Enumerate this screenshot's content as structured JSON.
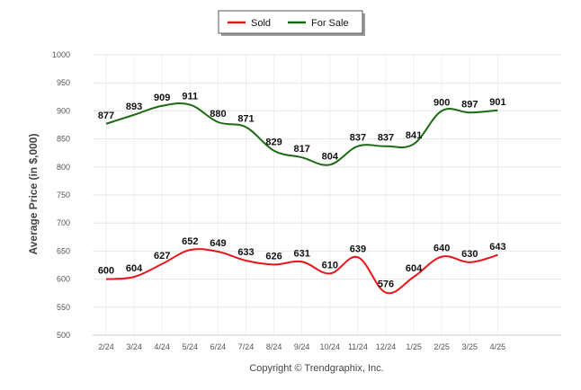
{
  "chart_data": {
    "type": "line",
    "ylabel": "Average Price (in $,000)",
    "ylim": [
      500,
      1000
    ],
    "yticks": [
      500,
      550,
      600,
      650,
      700,
      750,
      800,
      850,
      900,
      950,
      1000
    ],
    "grid": true,
    "legend_position": "top-center",
    "categories": [
      "2/24",
      "3/24",
      "4/24",
      "5/24",
      "6/24",
      "7/24",
      "8/24",
      "9/24",
      "10/24",
      "11/24",
      "12/24",
      "1/25",
      "2/25",
      "3/25",
      "4/25"
    ],
    "series": [
      {
        "name": "Sold",
        "color": "#e8151b",
        "values": [
          600,
          604,
          627,
          652,
          649,
          633,
          626,
          631,
          610,
          639,
          576,
          604,
          640,
          630,
          643
        ]
      },
      {
        "name": "For Sale",
        "color": "#1a6b12",
        "values": [
          877,
          893,
          909,
          911,
          880,
          871,
          829,
          817,
          804,
          837,
          837,
          841,
          900,
          897,
          901
        ]
      }
    ]
  },
  "footer": "Copyright © Trendgraphix, Inc."
}
